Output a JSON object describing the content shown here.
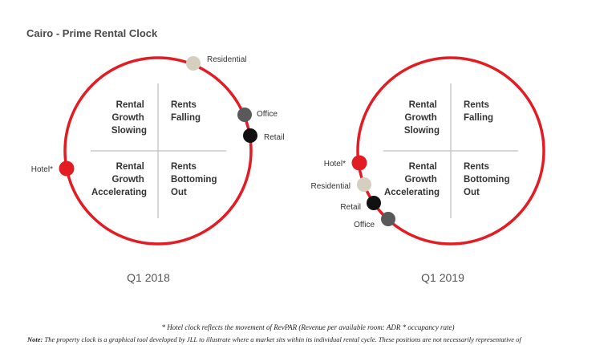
{
  "title": "Cairo - Prime Rental Clock",
  "colors": {
    "ring": "#e31b23",
    "axis": "#c8c8c8",
    "hotel": "#e31b23",
    "residential": "#d6cfc0",
    "office": "#58595b",
    "retail": "#111111"
  },
  "quadrants": {
    "top_left": [
      "Rental",
      "Growth",
      "Slowing"
    ],
    "top_right": [
      "Rents",
      "Falling"
    ],
    "bottom_left": [
      "Rental",
      "Growth",
      "Accelerating"
    ],
    "bottom_right": [
      "Rents",
      "Bottoming",
      "Out"
    ]
  },
  "clocks": [
    {
      "label": "Q1 2018",
      "sectors": [
        {
          "name": "Residential",
          "color_key": "residential"
        },
        {
          "name": "Office",
          "color_key": "office"
        },
        {
          "name": "Retail",
          "color_key": "retail"
        },
        {
          "name": "Hotel*",
          "color_key": "hotel"
        }
      ]
    },
    {
      "label": "Q1 2019",
      "sectors": [
        {
          "name": "Hotel*",
          "color_key": "hotel"
        },
        {
          "name": "Residential",
          "color_key": "residential"
        },
        {
          "name": "Retail",
          "color_key": "retail"
        },
        {
          "name": "Office",
          "color_key": "office"
        }
      ]
    }
  ],
  "footnote": "* Hotel clock reflects the movement of RevPAR (Revenue per available room: ADR * occupancy rate)",
  "note_label": "Note:",
  "note_text": " The property clock is a graphical tool developed by JLL to illustrate where a market sits within its individual rental cycle. These positions are not necessarily representative of"
}
